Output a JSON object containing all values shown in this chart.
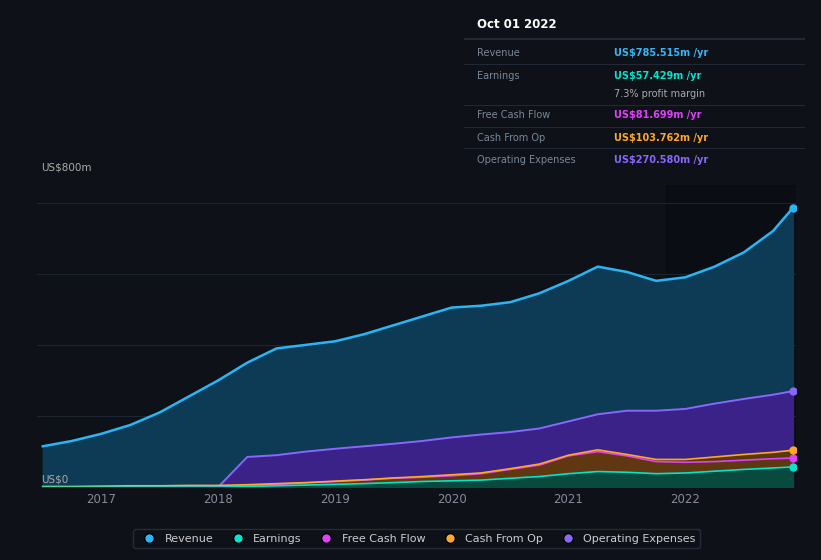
{
  "bg_color": "#0e1218",
  "plot_bg_color": "#0e1218",
  "ylabel_top": "US$800m",
  "ylabel_bottom": "US$0",
  "x_ticks": [
    "2017",
    "2018",
    "2019",
    "2020",
    "2021",
    "2022"
  ],
  "x_tick_pos": [
    2017,
    2018,
    2019,
    2020,
    2021,
    2022
  ],
  "xlim": [
    2016.45,
    2022.95
  ],
  "ylim": [
    0,
    850
  ],
  "dark_span_start": 2021.83,
  "info_box": {
    "date": "Oct 01 2022",
    "rows": [
      {
        "label": "Revenue",
        "value": "US$785.515m /yr",
        "value_color": "#3ab4f2"
      },
      {
        "label": "Earnings",
        "value": "US$57.429m /yr",
        "value_color": "#00e5cc"
      },
      {
        "label": "",
        "value": "7.3% profit margin",
        "value_color": "#aaaaaa"
      },
      {
        "label": "Free Cash Flow",
        "value": "US$81.699m /yr",
        "value_color": "#e040fb"
      },
      {
        "label": "Cash From Op",
        "value": "US$103.762m /yr",
        "value_color": "#ffa726"
      },
      {
        "label": "Operating Expenses",
        "value": "US$270.580m /yr",
        "value_color": "#8866ff"
      }
    ]
  },
  "series": {
    "revenue": {
      "color": "#29b6f6",
      "fill_color": "#0d3a55",
      "x": [
        2016.5,
        2016.75,
        2017.0,
        2017.25,
        2017.5,
        2017.75,
        2018.0,
        2018.25,
        2018.5,
        2018.75,
        2019.0,
        2019.25,
        2019.5,
        2019.75,
        2020.0,
        2020.25,
        2020.5,
        2020.75,
        2021.0,
        2021.25,
        2021.5,
        2021.75,
        2022.0,
        2022.25,
        2022.5,
        2022.75,
        2022.92
      ],
      "y": [
        115,
        130,
        150,
        175,
        210,
        255,
        300,
        350,
        390,
        400,
        410,
        430,
        455,
        480,
        505,
        510,
        520,
        545,
        580,
        620,
        605,
        580,
        590,
        620,
        660,
        720,
        785
      ]
    },
    "operating_expenses": {
      "color": "#8866ff",
      "fill_color": "#3a2288",
      "x": [
        2016.5,
        2016.75,
        2017.0,
        2017.25,
        2017.5,
        2017.75,
        2018.0,
        2018.25,
        2018.5,
        2018.75,
        2019.0,
        2019.25,
        2019.5,
        2019.75,
        2020.0,
        2020.25,
        2020.5,
        2020.75,
        2021.0,
        2021.25,
        2021.5,
        2021.75,
        2022.0,
        2022.25,
        2022.5,
        2022.75,
        2022.92
      ],
      "y": [
        0,
        0,
        0,
        0,
        0,
        0,
        0,
        85,
        90,
        100,
        108,
        115,
        122,
        130,
        140,
        148,
        155,
        165,
        185,
        205,
        215,
        215,
        220,
        235,
        248,
        260,
        270
      ]
    },
    "free_cash_flow": {
      "color": "#e040fb",
      "fill_color": "#7b1fa2",
      "x": [
        2016.5,
        2016.75,
        2017.0,
        2017.25,
        2017.5,
        2017.75,
        2018.0,
        2018.25,
        2018.5,
        2018.75,
        2019.0,
        2019.25,
        2019.5,
        2019.75,
        2020.0,
        2020.25,
        2020.5,
        2020.75,
        2021.0,
        2021.25,
        2021.5,
        2021.75,
        2022.0,
        2022.25,
        2022.5,
        2022.75,
        2022.92
      ],
      "y": [
        0,
        0,
        0,
        0,
        0,
        0,
        0,
        5,
        8,
        12,
        16,
        20,
        25,
        28,
        32,
        38,
        50,
        62,
        88,
        100,
        88,
        72,
        70,
        72,
        76,
        80,
        82
      ]
    },
    "cash_from_op": {
      "color": "#ffa726",
      "fill_color": "#5d3a00",
      "x": [
        2016.5,
        2016.75,
        2017.0,
        2017.25,
        2017.5,
        2017.75,
        2018.0,
        2018.25,
        2018.5,
        2018.75,
        2019.0,
        2019.25,
        2019.5,
        2019.75,
        2020.0,
        2020.25,
        2020.5,
        2020.75,
        2021.0,
        2021.25,
        2021.5,
        2021.75,
        2022.0,
        2022.25,
        2022.5,
        2022.75,
        2022.92
      ],
      "y": [
        2,
        2,
        3,
        4,
        4,
        5,
        5,
        7,
        10,
        13,
        17,
        21,
        26,
        30,
        35,
        40,
        52,
        65,
        90,
        105,
        92,
        78,
        78,
        85,
        92,
        98,
        104
      ]
    },
    "earnings": {
      "color": "#00e5cc",
      "fill_color": "#004d44",
      "x": [
        2016.5,
        2016.75,
        2017.0,
        2017.25,
        2017.5,
        2017.75,
        2018.0,
        2018.25,
        2018.5,
        2018.75,
        2019.0,
        2019.25,
        2019.5,
        2019.75,
        2020.0,
        2020.25,
        2020.5,
        2020.75,
        2021.0,
        2021.25,
        2021.5,
        2021.75,
        2022.0,
        2022.25,
        2022.5,
        2022.75,
        2022.92
      ],
      "y": [
        0,
        0,
        0,
        0,
        0,
        0,
        0,
        2,
        4,
        6,
        8,
        10,
        13,
        16,
        18,
        20,
        25,
        30,
        38,
        44,
        42,
        38,
        40,
        45,
        50,
        54,
        57
      ]
    }
  },
  "legend": [
    {
      "label": "Revenue",
      "color": "#29b6f6"
    },
    {
      "label": "Earnings",
      "color": "#00e5cc"
    },
    {
      "label": "Free Cash Flow",
      "color": "#e040fb"
    },
    {
      "label": "Cash From Op",
      "color": "#ffa726"
    },
    {
      "label": "Operating Expenses",
      "color": "#8866ff"
    }
  ],
  "grid_lines": [
    0,
    200,
    400,
    600,
    800
  ]
}
